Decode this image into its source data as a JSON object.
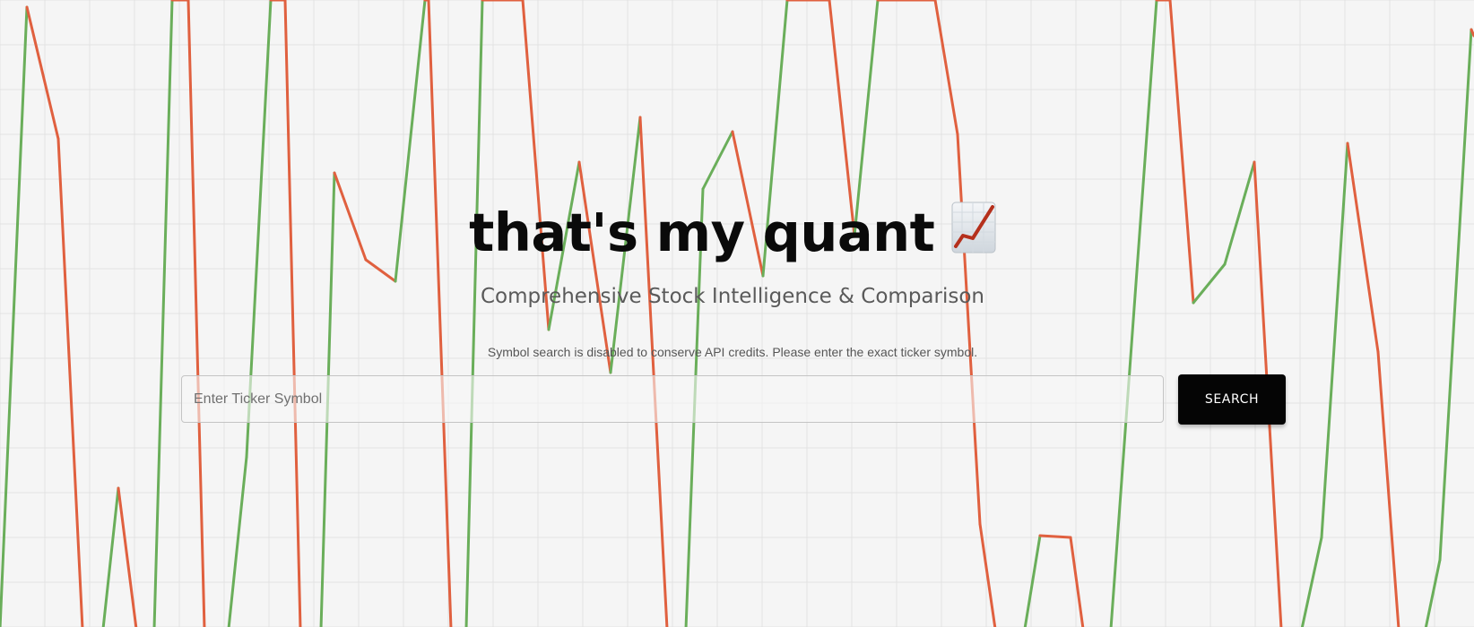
{
  "hero": {
    "title": "that's my quant",
    "title_icon": "chart-increasing-icon",
    "subtitle": "Comprehensive Stock Intelligence & Comparison"
  },
  "search": {
    "notice": "Symbol search is disabled to conserve API credits. Please enter the exact ticker symbol.",
    "placeholder": "Enter Ticker Symbol",
    "button_label": "SEARCH"
  },
  "colors": {
    "background": "#f5f5f5",
    "grid": "#e2e2e2",
    "line_up": "#6aae5a",
    "line_down": "#e0603f",
    "button": "#050505",
    "title": "#0a0a0a"
  }
}
